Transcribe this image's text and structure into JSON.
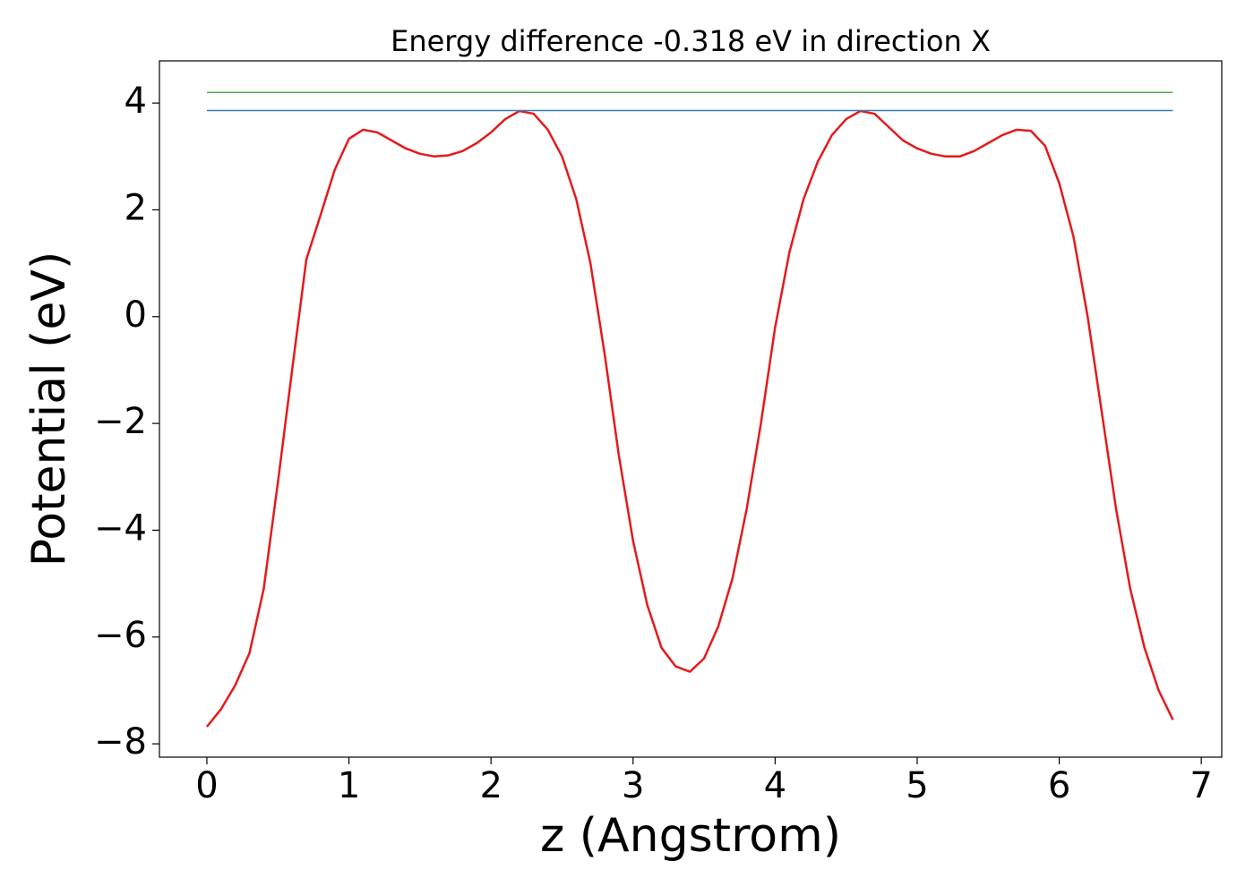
{
  "chart_data": {
    "type": "line",
    "title": "Energy difference -0.318 eV in direction X",
    "xlabel": "z (Angstrom)",
    "ylabel": "Potential (eV)",
    "xlim": [
      -0.334,
      7.144
    ],
    "ylim": [
      -8.25,
      4.79
    ],
    "xticks": [
      0,
      1,
      2,
      3,
      4,
      5,
      6,
      7
    ],
    "yticks": [
      {
        "value": -8,
        "label": "−8"
      },
      {
        "value": -6,
        "label": "−6"
      },
      {
        "value": -4,
        "label": "−4"
      },
      {
        "value": -2,
        "label": "−2"
      },
      0,
      2,
      4
    ],
    "series": [
      {
        "color": "#e41a1c",
        "x": [
          0,
          0.1,
          0.2,
          0.3,
          0.4,
          0.5,
          0.6,
          0.7,
          0.8,
          0.9,
          1.0,
          1.1,
          1.2,
          1.3,
          1.4,
          1.5,
          1.6,
          1.7,
          1.8,
          1.9,
          2.0,
          2.1,
          2.2,
          2.3,
          2.4,
          2.5,
          2.6,
          2.7,
          2.8,
          2.9,
          3.0,
          3.1,
          3.2,
          3.3,
          3.4,
          3.5,
          3.6,
          3.7,
          3.8,
          3.9,
          4.0,
          4.1,
          4.2,
          4.3,
          4.4,
          4.5,
          4.6,
          4.7,
          4.8,
          4.9,
          5.0,
          5.1,
          5.2,
          5.3,
          5.4,
          5.5,
          5.6,
          5.7,
          5.8,
          5.9,
          6.0,
          6.1,
          6.2,
          6.3,
          6.4,
          6.5,
          6.6,
          6.7,
          6.8
        ],
        "values": [
          -7.68,
          -7.35,
          -6.9,
          -6.3,
          -5.1,
          -3.1,
          -1.0,
          1.07,
          1.9,
          2.75,
          3.33,
          3.5,
          3.45,
          3.3,
          3.15,
          3.05,
          3.0,
          3.02,
          3.1,
          3.25,
          3.45,
          3.7,
          3.85,
          3.8,
          3.5,
          3.0,
          2.2,
          1.0,
          -0.7,
          -2.6,
          -4.2,
          -5.4,
          -6.2,
          -6.55,
          -6.65,
          -6.4,
          -5.8,
          -4.9,
          -3.6,
          -2.0,
          -0.2,
          1.2,
          2.2,
          2.9,
          3.4,
          3.7,
          3.85,
          3.8,
          3.55,
          3.3,
          3.15,
          3.05,
          3.0,
          3.0,
          3.1,
          3.25,
          3.4,
          3.5,
          3.48,
          3.2,
          2.5,
          1.5,
          0.0,
          -1.8,
          -3.6,
          -5.1,
          -6.2,
          -7.0,
          -7.55
        ],
        "width": 2.5
      },
      {
        "color": "#4daf4a",
        "x": [
          0,
          6.8
        ],
        "values": [
          4.2,
          4.2
        ],
        "width": 1.5
      },
      {
        "color": "#377eb8",
        "x": [
          0,
          6.8
        ],
        "values": [
          3.86,
          3.86
        ],
        "width": 1.5
      }
    ]
  }
}
